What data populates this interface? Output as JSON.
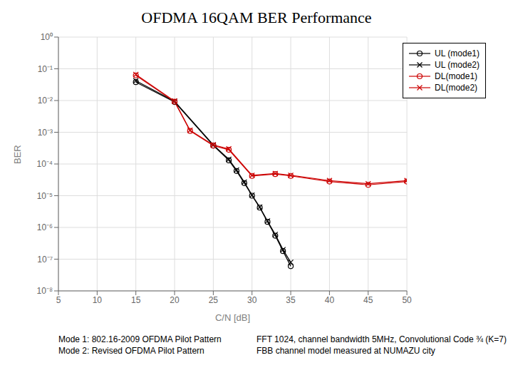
{
  "chart_data": {
    "type": "line",
    "title": "OFDMA 16QAM BER Performance",
    "x_label": "C/N [dB]",
    "y_label": "BER",
    "log": "y",
    "grid": true,
    "legend": "upper right",
    "xlim": [
      5,
      50
    ],
    "xticks": [
      5,
      10,
      15,
      20,
      25,
      30,
      35,
      40,
      45,
      50
    ],
    "ylim": [
      1e-08,
      1
    ],
    "yticks": [
      {
        "value": 1e-08,
        "label": "10⁻⁸"
      },
      {
        "value": 1e-07,
        "label": "10⁻⁷"
      },
      {
        "value": 1e-06,
        "label": "10⁻⁶"
      },
      {
        "value": 1e-05,
        "label": "10⁻⁵"
      },
      {
        "value": 0.0001,
        "label": "10⁻⁴"
      },
      {
        "value": 0.001,
        "label": "10⁻³"
      },
      {
        "value": 0.01,
        "label": "10⁻²"
      },
      {
        "value": 0.1,
        "label": "10⁻¹"
      },
      {
        "value": 1,
        "label": "10⁰"
      }
    ],
    "annotations": [
      "Mode 1: 802.16-2009 OFDMA Pilot Pattern\nMode 2: Revised OFDMA Pilot Pattern",
      "FFT 1024, channel bandwidth 5MHz, Convolutional Code ¾ (K=7)\nFBB channel model measured at NUMAZU city"
    ],
    "series": [
      {
        "name": "UL (mode1)",
        "color": "black",
        "marker": "circle",
        "line_style": "solid",
        "x": [
          15,
          20,
          25,
          27,
          28,
          29,
          30,
          31,
          32,
          33,
          34,
          35
        ],
        "values": [
          0.038,
          0.009,
          0.00038,
          0.00013,
          6e-05,
          2.5e-05,
          1e-05,
          4.2e-06,
          1.5e-06,
          5.5e-07,
          1.8e-07,
          6e-08
        ]
      },
      {
        "name": "UL (mode2)",
        "color": "black",
        "marker": "x",
        "line_style": "solid",
        "x": [
          15,
          20,
          25,
          27,
          28,
          29,
          30,
          31,
          32,
          33,
          34,
          35
        ],
        "values": [
          0.042,
          0.0095,
          0.0004,
          0.00014,
          6.5e-05,
          2.7e-05,
          1.05e-05,
          4.4e-06,
          1.6e-06,
          6e-07,
          2e-07,
          8e-08
        ]
      },
      {
        "name": "DL(mode1)",
        "color": "#cc0000",
        "marker": "circle",
        "line_style": "solid",
        "x": [
          15,
          20,
          22,
          25,
          27,
          30,
          33,
          35,
          40,
          45,
          50
        ],
        "values": [
          0.062,
          0.0092,
          0.0011,
          0.00038,
          0.00028,
          4.2e-05,
          4.8e-05,
          4.2e-05,
          2.8e-05,
          2.2e-05,
          2.8e-05
        ]
      },
      {
        "name": "DL(mode2)",
        "color": "#cc0000",
        "marker": "x",
        "line_style": "solid",
        "x": [
          15,
          20,
          22,
          25,
          27,
          30,
          33,
          35,
          40,
          45,
          50
        ],
        "values": [
          0.066,
          0.0096,
          0.00115,
          0.0004,
          0.0003,
          4.4e-05,
          5e-05,
          4.4e-05,
          3e-05,
          2.4e-05,
          3e-05
        ]
      }
    ]
  }
}
